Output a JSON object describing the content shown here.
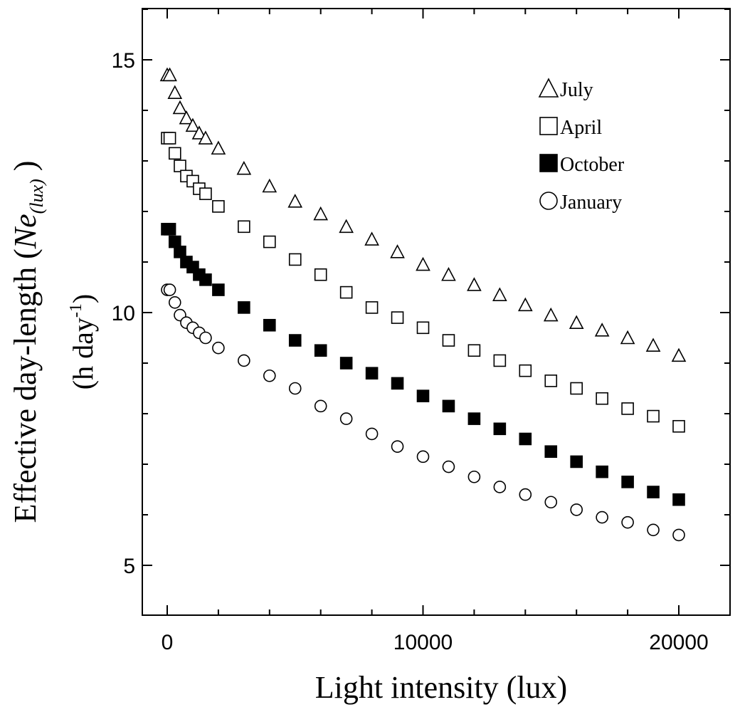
{
  "chart_data": {
    "type": "scatter",
    "title": "",
    "xlabel": "Light intensity   (lux)",
    "ylabel": {
      "main": "Effective  day-length (",
      "symbol": "Ne",
      "subscript": "(lux)",
      "close": " )",
      "units_open": "(h day",
      "units_exp": "-1",
      "units_close": ")"
    },
    "xlim": [
      -1000,
      22000
    ],
    "ylim": [
      4,
      16
    ],
    "xticks": [
      0,
      10000,
      20000
    ],
    "xtick_labels": [
      "0",
      "10000",
      "20000"
    ],
    "yticks": [
      5,
      10,
      15
    ],
    "ytick_labels": [
      "5",
      "10",
      "15"
    ],
    "grid": false,
    "legend_position": "top-right",
    "x": [
      0,
      100,
      300,
      500,
      750,
      1000,
      1250,
      1500,
      2000,
      3000,
      4000,
      5000,
      6000,
      7000,
      8000,
      9000,
      10000,
      11000,
      12000,
      13000,
      14000,
      15000,
      16000,
      17000,
      18000,
      19000,
      20000
    ],
    "series": [
      {
        "name": "July",
        "marker": "triangle-open",
        "values": [
          14.7,
          14.7,
          14.35,
          14.05,
          13.85,
          13.7,
          13.55,
          13.45,
          13.25,
          12.85,
          12.5,
          12.2,
          11.95,
          11.7,
          11.45,
          11.2,
          10.95,
          10.75,
          10.55,
          10.35,
          10.15,
          9.95,
          9.8,
          9.65,
          9.5,
          9.35,
          9.15
        ]
      },
      {
        "name": "April",
        "marker": "square-open",
        "values": [
          13.45,
          13.45,
          13.15,
          12.9,
          12.7,
          12.6,
          12.45,
          12.35,
          12.1,
          11.7,
          11.4,
          11.05,
          10.75,
          10.4,
          10.1,
          9.9,
          9.7,
          9.45,
          9.25,
          9.05,
          8.85,
          8.65,
          8.5,
          8.3,
          8.1,
          7.95,
          7.75
        ]
      },
      {
        "name": "October",
        "marker": "square-filled",
        "values": [
          11.65,
          11.65,
          11.4,
          11.2,
          11.0,
          10.9,
          10.75,
          10.65,
          10.45,
          10.1,
          9.75,
          9.45,
          9.25,
          9.0,
          8.8,
          8.6,
          8.35,
          8.15,
          7.9,
          7.7,
          7.5,
          7.25,
          7.05,
          6.85,
          6.65,
          6.45,
          6.3
        ]
      },
      {
        "name": "January",
        "marker": "circle-open",
        "values": [
          10.45,
          10.45,
          10.2,
          9.95,
          9.8,
          9.7,
          9.6,
          9.5,
          9.3,
          9.05,
          8.75,
          8.5,
          8.15,
          7.9,
          7.6,
          7.35,
          7.15,
          6.95,
          6.75,
          6.55,
          6.4,
          6.25,
          6.1,
          5.95,
          5.85,
          5.7,
          5.6
        ]
      }
    ]
  }
}
